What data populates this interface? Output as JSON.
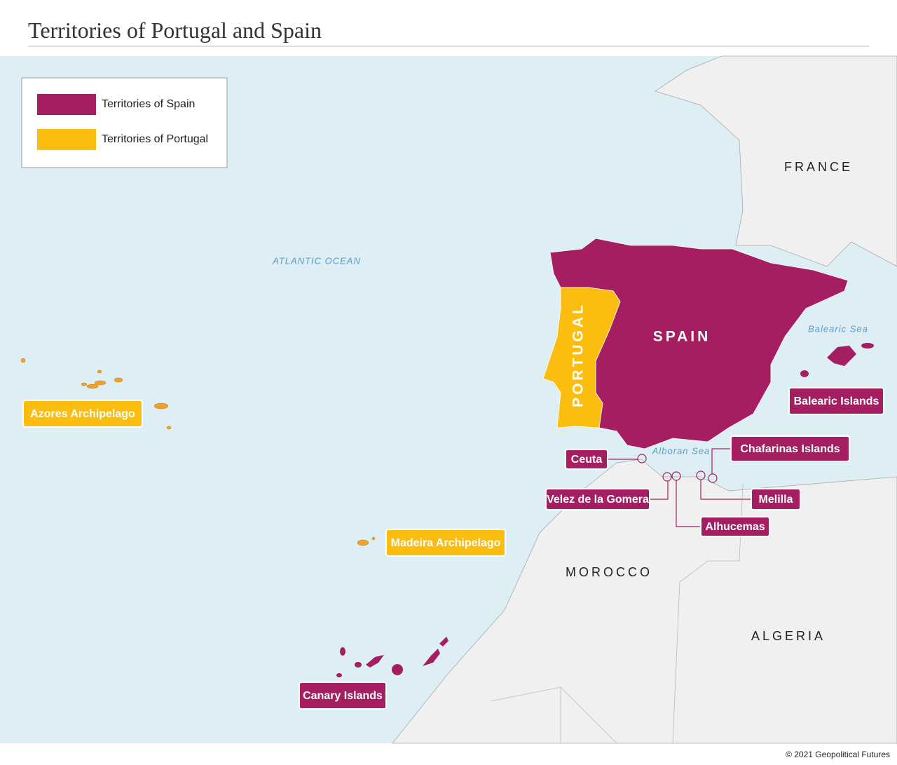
{
  "header": {
    "title": "Territories of Portugal and Spain"
  },
  "legend": [
    {
      "label": "Territories of Spain",
      "color": "#a51e62"
    },
    {
      "label": "Territories of Portugal",
      "color": "#fbbd0f"
    }
  ],
  "map_labels": {
    "france": "FRANCE",
    "atlantic_ocean": "ATLANTIC OCEAN",
    "spain": "SPAIN",
    "portugal": "PORTUGAL",
    "balearic_sea": "Balearic Sea",
    "alboran_sea": "Alboran Sea",
    "morocco": "MOROCCO",
    "algeria": "ALGERIA"
  },
  "callouts": [
    {
      "label": "Balearic Islands",
      "owner": "Spain"
    },
    {
      "label": "Azores Archipelago",
      "owner": "Portugal"
    },
    {
      "label": "Ceuta",
      "owner": "Spain"
    },
    {
      "label": "Chafarinas Islands",
      "owner": "Spain"
    },
    {
      "label": "Velez de la Gomera",
      "owner": "Spain"
    },
    {
      "label": "Melilla",
      "owner": "Spain"
    },
    {
      "label": "Alhucemas",
      "owner": "Spain"
    },
    {
      "label": "Madeira Archipelago",
      "owner": "Portugal"
    },
    {
      "label": "Canary Islands",
      "owner": "Spain"
    }
  ],
  "footer": "© 2021 Geopolitical Futures"
}
